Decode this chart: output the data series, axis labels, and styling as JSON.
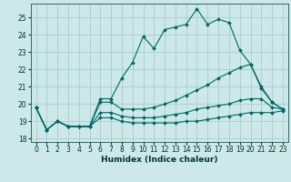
{
  "xlabel": "Humidex (Indice chaleur)",
  "bg_color": "#cce8e8",
  "grid_color": "#aacccc",
  "line_color": "#006666",
  "xlim": [
    -0.5,
    23.5
  ],
  "ylim": [
    17.8,
    25.8
  ],
  "yticks": [
    18,
    19,
    20,
    21,
    22,
    23,
    24,
    25
  ],
  "xticks": [
    0,
    1,
    2,
    3,
    4,
    5,
    6,
    7,
    8,
    9,
    10,
    11,
    12,
    13,
    14,
    15,
    16,
    17,
    18,
    19,
    20,
    21,
    22,
    23
  ],
  "lines": [
    {
      "x": [
        0,
        1,
        2,
        3,
        4,
        5,
        6,
        7,
        8,
        9,
        10,
        11,
        12,
        13,
        14,
        15,
        16,
        17,
        18,
        19,
        20,
        21,
        22,
        23
      ],
      "y": [
        19.8,
        18.5,
        19.0,
        18.7,
        18.7,
        18.7,
        20.3,
        20.3,
        21.5,
        22.4,
        23.9,
        23.2,
        24.3,
        24.45,
        24.6,
        25.5,
        24.6,
        24.9,
        24.7,
        23.1,
        22.3,
        20.9,
        20.1,
        19.7
      ]
    },
    {
      "x": [
        0,
        1,
        2,
        3,
        4,
        5,
        6,
        7,
        8,
        9,
        10,
        11,
        12,
        13,
        14,
        15,
        16,
        17,
        18,
        19,
        20,
        21,
        22,
        23
      ],
      "y": [
        19.8,
        18.5,
        19.0,
        18.7,
        18.7,
        18.7,
        20.1,
        20.1,
        19.7,
        19.7,
        19.7,
        19.8,
        20.0,
        20.2,
        20.5,
        20.8,
        21.1,
        21.5,
        21.8,
        22.1,
        22.3,
        21.0,
        20.1,
        19.7
      ]
    },
    {
      "x": [
        0,
        1,
        2,
        3,
        4,
        5,
        6,
        7,
        8,
        9,
        10,
        11,
        12,
        13,
        14,
        15,
        16,
        17,
        18,
        19,
        20,
        21,
        22,
        23
      ],
      "y": [
        19.8,
        18.5,
        19.0,
        18.7,
        18.7,
        18.7,
        19.5,
        19.5,
        19.3,
        19.2,
        19.2,
        19.2,
        19.3,
        19.4,
        19.5,
        19.7,
        19.8,
        19.9,
        20.0,
        20.2,
        20.3,
        20.3,
        19.8,
        19.7
      ]
    },
    {
      "x": [
        0,
        1,
        2,
        3,
        4,
        5,
        6,
        7,
        8,
        9,
        10,
        11,
        12,
        13,
        14,
        15,
        16,
        17,
        18,
        19,
        20,
        21,
        22,
        23
      ],
      "y": [
        19.8,
        18.5,
        19.0,
        18.7,
        18.7,
        18.7,
        19.2,
        19.2,
        19.0,
        18.9,
        18.9,
        18.9,
        18.9,
        18.9,
        19.0,
        19.0,
        19.1,
        19.2,
        19.3,
        19.4,
        19.5,
        19.5,
        19.5,
        19.6
      ]
    }
  ]
}
